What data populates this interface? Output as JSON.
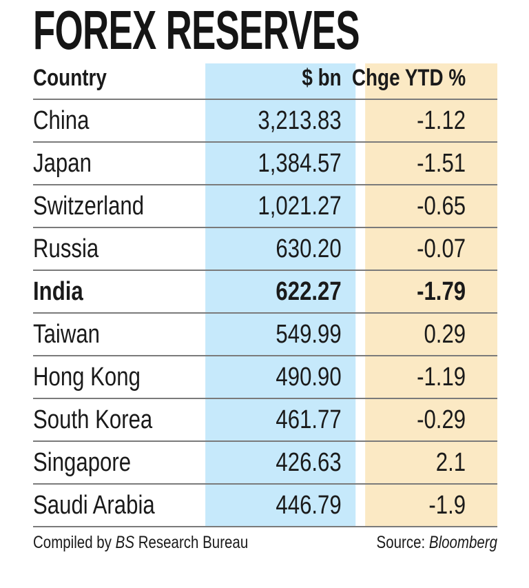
{
  "title": "FOREX RESERVES",
  "chart_data": {
    "type": "table",
    "title": "FOREX RESERVES",
    "columns": [
      "Country",
      "$ bn",
      "Chge YTD %"
    ],
    "rows": [
      {
        "country": "China",
        "reserves": "3,213.83",
        "change": "-1.12"
      },
      {
        "country": "Japan",
        "reserves": "1,384.57",
        "change": "-1.51"
      },
      {
        "country": "Switzerland",
        "reserves": "1,021.27",
        "change": "-0.65"
      },
      {
        "country": "Russia",
        "reserves": "630.20",
        "change": "-0.07"
      },
      {
        "country": "India",
        "reserves": "622.27",
        "change": "-1.79",
        "highlight": true
      },
      {
        "country": "Taiwan",
        "reserves": "549.99",
        "change": "0.29"
      },
      {
        "country": "Hong Kong",
        "reserves": "490.90",
        "change": "-1.19"
      },
      {
        "country": "South Korea",
        "reserves": "461.77",
        "change": "-0.29"
      },
      {
        "country": "Singapore",
        "reserves": "426.63",
        "change": "2.1"
      },
      {
        "country": "Saudi Arabia",
        "reserves": "446.79",
        "change": "-1.9"
      }
    ],
    "column_colors": {
      "reserves": "#c6e9fb",
      "change": "#fbe9c4"
    }
  },
  "footer": {
    "compiled_prefix": "Compiled by ",
    "compiled_italic": "BS",
    "compiled_suffix": " Research Bureau",
    "source_prefix": "Source: ",
    "source_italic": "Bloomberg"
  }
}
